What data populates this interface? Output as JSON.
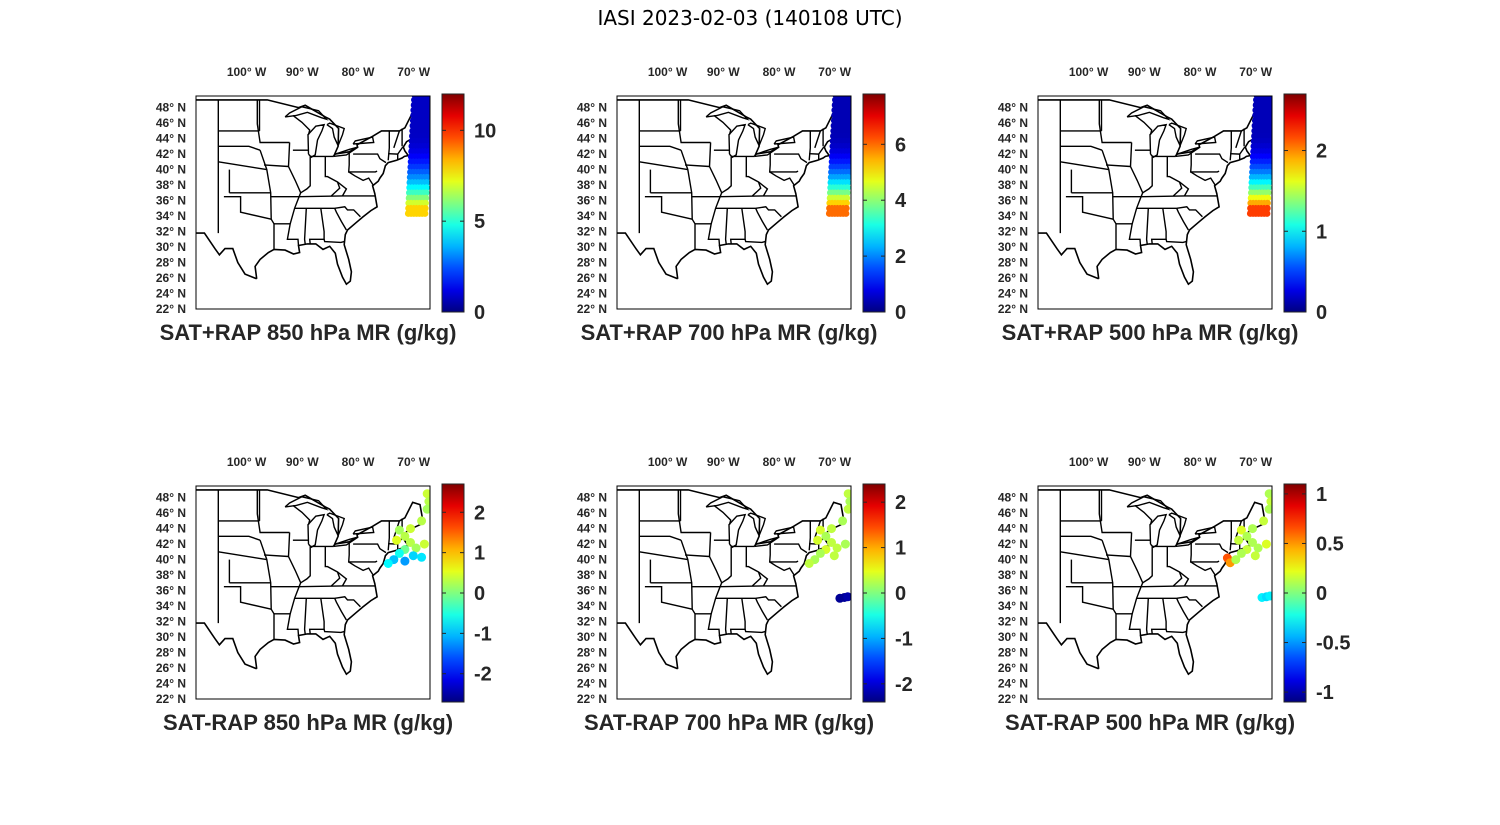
{
  "figure": {
    "title": "IASI 2023-02-03 (140108 UTC)"
  },
  "axes": {
    "lon_labels": [
      "100",
      "90",
      "80",
      "70"
    ],
    "lon_hemisphere": "W",
    "lat_labels": [
      "48",
      "46",
      "44",
      "42",
      "40",
      "38",
      "36",
      "34",
      "32",
      "30",
      "28",
      "26",
      "24",
      "22"
    ],
    "lat_hemisphere": "N",
    "lat_range": [
      22,
      49.5
    ],
    "lon_range": [
      -108,
      -66
    ],
    "lon_tick_values": [
      -100,
      -90,
      -80,
      -70
    ]
  },
  "colormap": "jet",
  "panels": [
    {
      "title": "SAT+RAP 850 hPa MR (g/kg)",
      "colorbar": {
        "range": [
          0,
          12
        ],
        "ticks": [
          0,
          5,
          10
        ],
        "tick_labels": [
          "0",
          "5",
          "10"
        ]
      },
      "swath": {
        "lon_range": [
          -69,
          -65.5
        ],
        "lat_range": [
          34,
          50
        ],
        "values_north": 0.8,
        "values_south": 8
      }
    },
    {
      "title": "SAT+RAP 700 hPa MR (g/kg)",
      "colorbar": {
        "range": [
          0,
          7.8
        ],
        "ticks": [
          0,
          2,
          4,
          6
        ],
        "tick_labels": [
          "0",
          "2",
          "4",
          "6"
        ]
      },
      "swath": {
        "lon_range": [
          -69,
          -65.5
        ],
        "lat_range": [
          34,
          50
        ],
        "values_north": 0.4,
        "values_south": 6
      }
    },
    {
      "title": "SAT+RAP 500 hPa MR (g/kg)",
      "colorbar": {
        "range": [
          0,
          2.7
        ],
        "ticks": [
          0,
          1,
          2
        ],
        "tick_labels": [
          "0",
          "1",
          "2"
        ]
      },
      "swath": {
        "lon_range": [
          -69,
          -65.5
        ],
        "lat_range": [
          34,
          50
        ],
        "values_north": 0.15,
        "values_south": 2.2
      }
    },
    {
      "title": "SAT-RAP 850 hPa MR (g/kg)",
      "colorbar": {
        "range": [
          -2.7,
          2.7
        ],
        "ticks": [
          -2,
          -1,
          0,
          1,
          2
        ],
        "tick_labels": [
          "-2",
          "-1",
          "0",
          "1",
          "2"
        ]
      },
      "points": [
        {
          "lon": -66.5,
          "lat": 48.5,
          "v": 0.4
        },
        {
          "lon": -66.2,
          "lat": 47.5,
          "v": 0.3
        },
        {
          "lon": -66.5,
          "lat": 46.5,
          "v": 0.2
        },
        {
          "lon": -67.5,
          "lat": 45,
          "v": 0.3
        },
        {
          "lon": -69.5,
          "lat": 44,
          "v": 0.4
        },
        {
          "lon": -71.5,
          "lat": 43.8,
          "v": 0.2
        },
        {
          "lon": -70.5,
          "lat": 43,
          "v": 0.3
        },
        {
          "lon": -72,
          "lat": 42.5,
          "v": 0.5
        },
        {
          "lon": -69.5,
          "lat": 42.2,
          "v": 0.3
        },
        {
          "lon": -67,
          "lat": 42,
          "v": 0.4
        },
        {
          "lon": -68.5,
          "lat": 41.5,
          "v": 0.2
        },
        {
          "lon": -70.5,
          "lat": 41.3,
          "v": -0.1
        },
        {
          "lon": -71.5,
          "lat": 40.8,
          "v": -0.6
        },
        {
          "lon": -69,
          "lat": 40.5,
          "v": -0.9
        },
        {
          "lon": -67.5,
          "lat": 40.3,
          "v": -0.8
        },
        {
          "lon": -72.5,
          "lat": 40,
          "v": -1.0
        },
        {
          "lon": -70.5,
          "lat": 39.8,
          "v": -1.2
        },
        {
          "lon": -73.5,
          "lat": 39.5,
          "v": -0.7
        }
      ]
    },
    {
      "title": "SAT-RAP 700 hPa MR (g/kg)",
      "colorbar": {
        "range": [
          -2.4,
          2.4
        ],
        "ticks": [
          -2,
          -1,
          0,
          1,
          2
        ],
        "tick_labels": [
          "-2",
          "-1",
          "0",
          "1",
          "2"
        ]
      },
      "points": [
        {
          "lon": -66.5,
          "lat": 48.5,
          "v": 0.3
        },
        {
          "lon": -66.2,
          "lat": 47.5,
          "v": 0.2
        },
        {
          "lon": -66.5,
          "lat": 46.5,
          "v": 0.3
        },
        {
          "lon": -67.5,
          "lat": 45,
          "v": 0.2
        },
        {
          "lon": -69.5,
          "lat": 44,
          "v": 0.3
        },
        {
          "lon": -71.5,
          "lat": 43.8,
          "v": 0.4
        },
        {
          "lon": -70.5,
          "lat": 43,
          "v": 0.2
        },
        {
          "lon": -72,
          "lat": 42.5,
          "v": 0.4
        },
        {
          "lon": -69.5,
          "lat": 42.2,
          "v": 0.3
        },
        {
          "lon": -67,
          "lat": 42,
          "v": 0.2
        },
        {
          "lon": -68.5,
          "lat": 41.5,
          "v": 0.3
        },
        {
          "lon": -70.5,
          "lat": 41.3,
          "v": 0.4
        },
        {
          "lon": -71.5,
          "lat": 40.8,
          "v": 0.2
        },
        {
          "lon": -69,
          "lat": 40.5,
          "v": 0.3
        },
        {
          "lon": -72.5,
          "lat": 40,
          "v": 0.2
        },
        {
          "lon": -73.5,
          "lat": 39.5,
          "v": 0.3
        },
        {
          "lon": -68,
          "lat": 35,
          "v": -2.3
        },
        {
          "lon": -67.2,
          "lat": 35.1,
          "v": -2.3
        },
        {
          "lon": -66.6,
          "lat": 35.2,
          "v": -2.2
        }
      ]
    },
    {
      "title": "SAT-RAP 500 hPa MR (g/kg)",
      "colorbar": {
        "range": [
          -1.1,
          1.1
        ],
        "ticks": [
          -1,
          -0.5,
          0,
          0.5,
          1
        ],
        "tick_labels": [
          "-1",
          "-0.5",
          "0",
          "0.5",
          "1"
        ]
      },
      "points": [
        {
          "lon": -66.5,
          "lat": 48.5,
          "v": 0.1
        },
        {
          "lon": -66.2,
          "lat": 47.5,
          "v": 0.15
        },
        {
          "lon": -66.5,
          "lat": 46.5,
          "v": 0.1
        },
        {
          "lon": -67.5,
          "lat": 45,
          "v": 0.15
        },
        {
          "lon": -69.5,
          "lat": 44,
          "v": 0.1
        },
        {
          "lon": -71.5,
          "lat": 43.8,
          "v": 0.2
        },
        {
          "lon": -70.5,
          "lat": 43,
          "v": 0.1
        },
        {
          "lon": -72,
          "lat": 42.5,
          "v": 0.15
        },
        {
          "lon": -69.5,
          "lat": 42.2,
          "v": 0.1
        },
        {
          "lon": -67,
          "lat": 42,
          "v": 0.2
        },
        {
          "lon": -68.5,
          "lat": 41.5,
          "v": 0.1
        },
        {
          "lon": -70.5,
          "lat": 41.3,
          "v": 0.15
        },
        {
          "lon": -71.5,
          "lat": 40.8,
          "v": 0.1
        },
        {
          "lon": -69,
          "lat": 40.5,
          "v": 0.15
        },
        {
          "lon": -74,
          "lat": 40.2,
          "v": 0.65
        },
        {
          "lon": -73.5,
          "lat": 39.6,
          "v": 0.5
        },
        {
          "lon": -72.5,
          "lat": 40,
          "v": 0.1
        },
        {
          "lon": -67.8,
          "lat": 35.1,
          "v": -0.3
        },
        {
          "lon": -67,
          "lat": 35.2,
          "v": -0.35
        },
        {
          "lon": -66.4,
          "lat": 35.3,
          "v": -0.3
        }
      ]
    }
  ]
}
